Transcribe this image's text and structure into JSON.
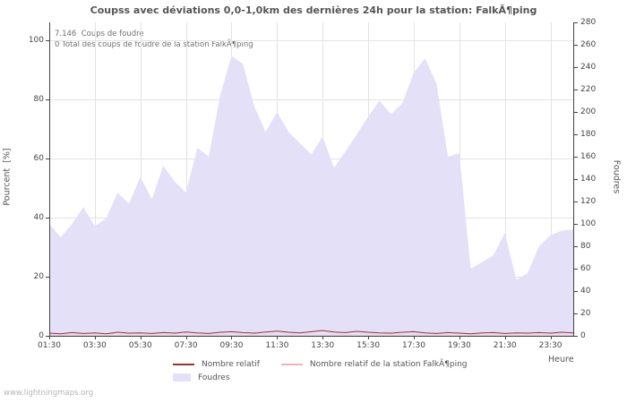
{
  "page": {
    "watermark": "www.lightningmaps.org"
  },
  "chart_data": {
    "type": "area",
    "title": "Coupss avec déviations 0,0-1,0km des dernières 24h pour la station: FalkÃ¶ping",
    "xlabel": "Heure",
    "ylabel_left": "Pourcent  [%]",
    "ylabel_right": "Foudres",
    "annotations": [
      "7.146  Coups de foudre",
      "0 Total des coups de foudre de la station FalkÃ¶ping"
    ],
    "ylim_left": [
      0,
      100
    ],
    "ylim_right": [
      0,
      280
    ],
    "yticks_left": [
      0,
      20,
      40,
      60,
      80,
      100
    ],
    "yticks_right": [
      0,
      20,
      40,
      60,
      80,
      100,
      120,
      140,
      160,
      180,
      200,
      220,
      240,
      260,
      280
    ],
    "xticks": [
      "01:30",
      "03:30",
      "05:30",
      "07:30",
      "09:30",
      "11:30",
      "13:30",
      "15:30",
      "17:30",
      "19:30",
      "21:30",
      "23:30"
    ],
    "grid": true,
    "legend_position": "bottom",
    "x": [
      "01:30",
      "02:00",
      "02:30",
      "03:00",
      "03:30",
      "04:00",
      "04:30",
      "05:00",
      "05:30",
      "06:00",
      "06:30",
      "07:00",
      "07:30",
      "08:00",
      "08:30",
      "09:00",
      "09:30",
      "10:00",
      "10:30",
      "11:00",
      "11:30",
      "12:00",
      "12:30",
      "13:00",
      "13:30",
      "14:00",
      "14:30",
      "15:00",
      "15:30",
      "16:00",
      "16:30",
      "17:00",
      "17:30",
      "18:00",
      "18:30",
      "19:00",
      "19:30",
      "20:00",
      "20:30",
      "21:00",
      "21:30",
      "22:00",
      "22:30",
      "23:00",
      "23:30",
      "00:00",
      "00:30"
    ],
    "series": [
      {
        "name": "Foudres",
        "type": "area",
        "axis": "right",
        "color": "#e4e0f8",
        "values": [
          100,
          88,
          100,
          115,
          98,
          105,
          128,
          118,
          142,
          122,
          152,
          138,
          128,
          168,
          160,
          215,
          250,
          243,
          205,
          182,
          200,
          182,
          172,
          162,
          178,
          150,
          165,
          180,
          196,
          210,
          198,
          208,
          235,
          248,
          225,
          160,
          163,
          60,
          66,
          72,
          92,
          50,
          56,
          80,
          90,
          94,
          95
        ]
      },
      {
        "name": "Nombre relatif",
        "type": "line",
        "axis": "left",
        "color": "#993333",
        "values": [
          0.9,
          0.7,
          1.1,
          0.8,
          1.0,
          0.7,
          1.2,
          0.9,
          1.0,
          0.8,
          1.1,
          0.9,
          1.3,
          1.0,
          0.8,
          1.2,
          1.4,
          1.1,
          0.9,
          1.3,
          1.6,
          1.2,
          1.0,
          1.4,
          1.8,
          1.3,
          1.1,
          1.5,
          1.2,
          1.0,
          0.9,
          1.2,
          1.4,
          1.0,
          0.8,
          1.1,
          0.9,
          0.7,
          1.0,
          1.1,
          0.8,
          1.0,
          0.9,
          1.1,
          0.9,
          1.2,
          1.0
        ]
      },
      {
        "name": "Nombre relatif de la station FalkÃ¶ping",
        "type": "line",
        "axis": "left",
        "color": "#eeb3bb",
        "values": [
          0,
          0,
          0,
          0,
          0,
          0,
          0,
          0,
          0,
          0,
          0,
          0,
          0,
          0,
          0,
          0,
          0,
          0,
          0,
          0,
          0,
          0,
          0,
          0,
          0,
          0,
          0,
          0,
          0,
          0,
          0,
          0,
          0,
          0,
          0,
          0,
          0,
          0,
          0,
          0,
          0,
          0,
          0,
          0,
          0,
          0,
          0
        ]
      }
    ],
    "legend": [
      {
        "label": "Nombre relatif",
        "color": "#993333",
        "type": "line"
      },
      {
        "label": "Nombre relatif de la station FalkÃ¶ping",
        "color": "#eeb3bb",
        "type": "line"
      },
      {
        "label": "Foudres",
        "color": "#e4e0f8",
        "type": "area"
      }
    ],
    "colors": {
      "grid": "#e3e3e3",
      "axis": "#444444",
      "title": "#555555"
    }
  }
}
